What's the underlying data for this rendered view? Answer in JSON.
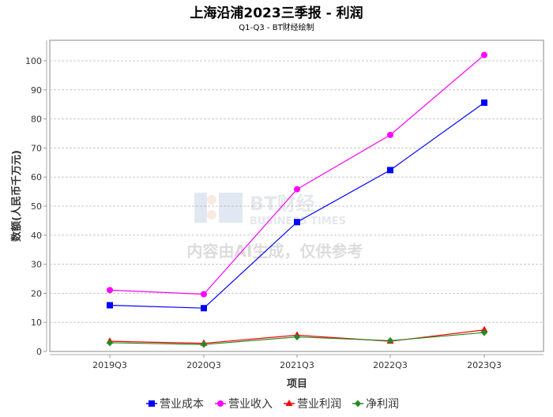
{
  "chart_data": {
    "type": "line",
    "title": "上海沿浦2023三季报 - 利润",
    "subtitle": "Q1-Q3 - BT财经绘制",
    "xlabel": "项目",
    "ylabel": "数额(人民币千万元)",
    "categories": [
      "2019Q3",
      "2020Q3",
      "2021Q3",
      "2022Q3",
      "2023Q3"
    ],
    "ylim": [
      0,
      105
    ],
    "yticks": [
      0,
      10,
      20,
      30,
      40,
      50,
      60,
      70,
      80,
      90,
      100
    ],
    "grid": true,
    "legend_position": "bottom",
    "series": [
      {
        "name": "营业成本",
        "color": "#0000ff",
        "marker": "square",
        "values": [
          15.9,
          14.9,
          44.5,
          62.4,
          85.6
        ]
      },
      {
        "name": "营业收入",
        "color": "#ff00ff",
        "marker": "circle",
        "values": [
          21.1,
          19.7,
          55.8,
          74.5,
          102.0
        ]
      },
      {
        "name": "营业利润",
        "color": "#ff0000",
        "marker": "triangle",
        "values": [
          3.5,
          2.8,
          5.6,
          3.5,
          7.4
        ]
      },
      {
        "name": "净利润",
        "color": "#228b22",
        "marker": "diamond",
        "values": [
          3.0,
          2.4,
          5.0,
          3.7,
          6.5
        ]
      }
    ]
  },
  "watermark": {
    "brand": "BT财经",
    "brand_en": "BUSINESS TIMES",
    "notice": "内容由AI生成，仅供参考"
  }
}
